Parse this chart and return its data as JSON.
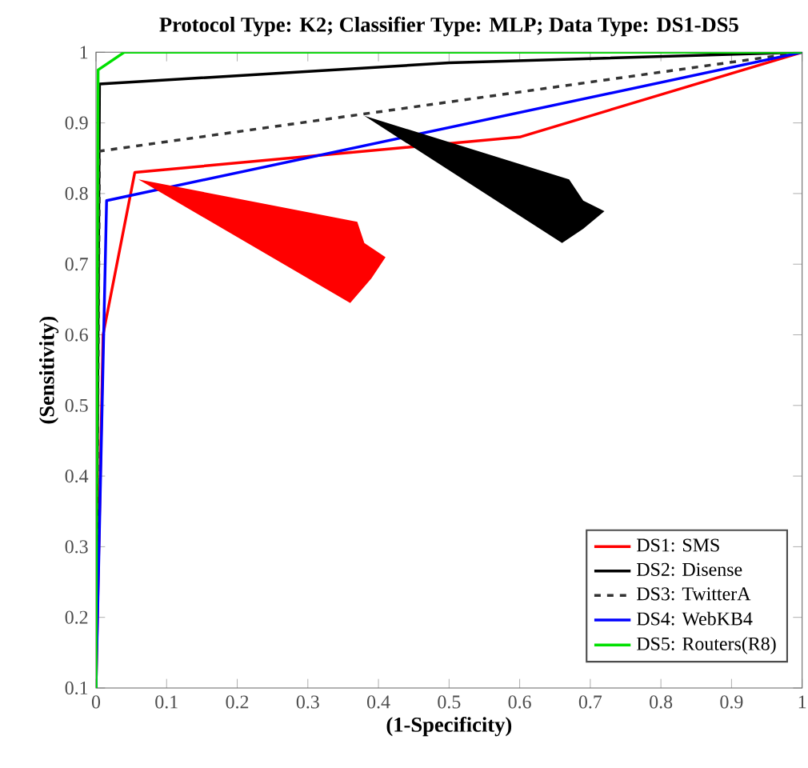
{
  "chart_data": {
    "type": "line",
    "title": "Protocol Type: K2; Classifier Type: MLP; Data Type: DS1-DS5",
    "xlabel": "(1-Specificity)",
    "ylabel": "(Sensitivity)",
    "xlim": [
      0,
      1
    ],
    "ylim": [
      0.1,
      1
    ],
    "xticks": [
      0,
      0.1,
      0.2,
      0.3,
      0.4,
      0.5,
      0.6,
      0.7,
      0.8,
      0.9,
      1
    ],
    "yticks": [
      0.1,
      0.2,
      0.3,
      0.4,
      0.5,
      0.6,
      0.7,
      0.8,
      0.9,
      1
    ],
    "legend": "bottom right",
    "grid": false,
    "series": [
      {
        "name": "DS1: SMS",
        "color": "#ff0000",
        "x": [
          0,
          0.01,
          0.055,
          0.6,
          1
        ],
        "values": [
          0.1,
          0.6,
          0.83,
          0.88,
          1
        ]
      },
      {
        "name": "DS2: Disense",
        "color": "#000000",
        "x": [
          0,
          0.005,
          0.5,
          1
        ],
        "values": [
          0.1,
          0.955,
          0.985,
          1
        ]
      },
      {
        "name": "DS3: TwitterA",
        "color": "#333333",
        "line_style": "dashed",
        "x": [
          0,
          0.005,
          1
        ],
        "values": [
          0.1,
          0.86,
          1
        ]
      },
      {
        "name": "DS4: WebKB4",
        "color": "#0000ff",
        "x": [
          0,
          0.015,
          1
        ],
        "values": [
          0.1,
          0.79,
          1
        ]
      },
      {
        "name": "DS5: Routers(R8)",
        "color": "#00e000",
        "x": [
          0,
          0.003,
          0.04,
          1
        ],
        "values": [
          0.1,
          0.975,
          1,
          1
        ]
      }
    ]
  }
}
